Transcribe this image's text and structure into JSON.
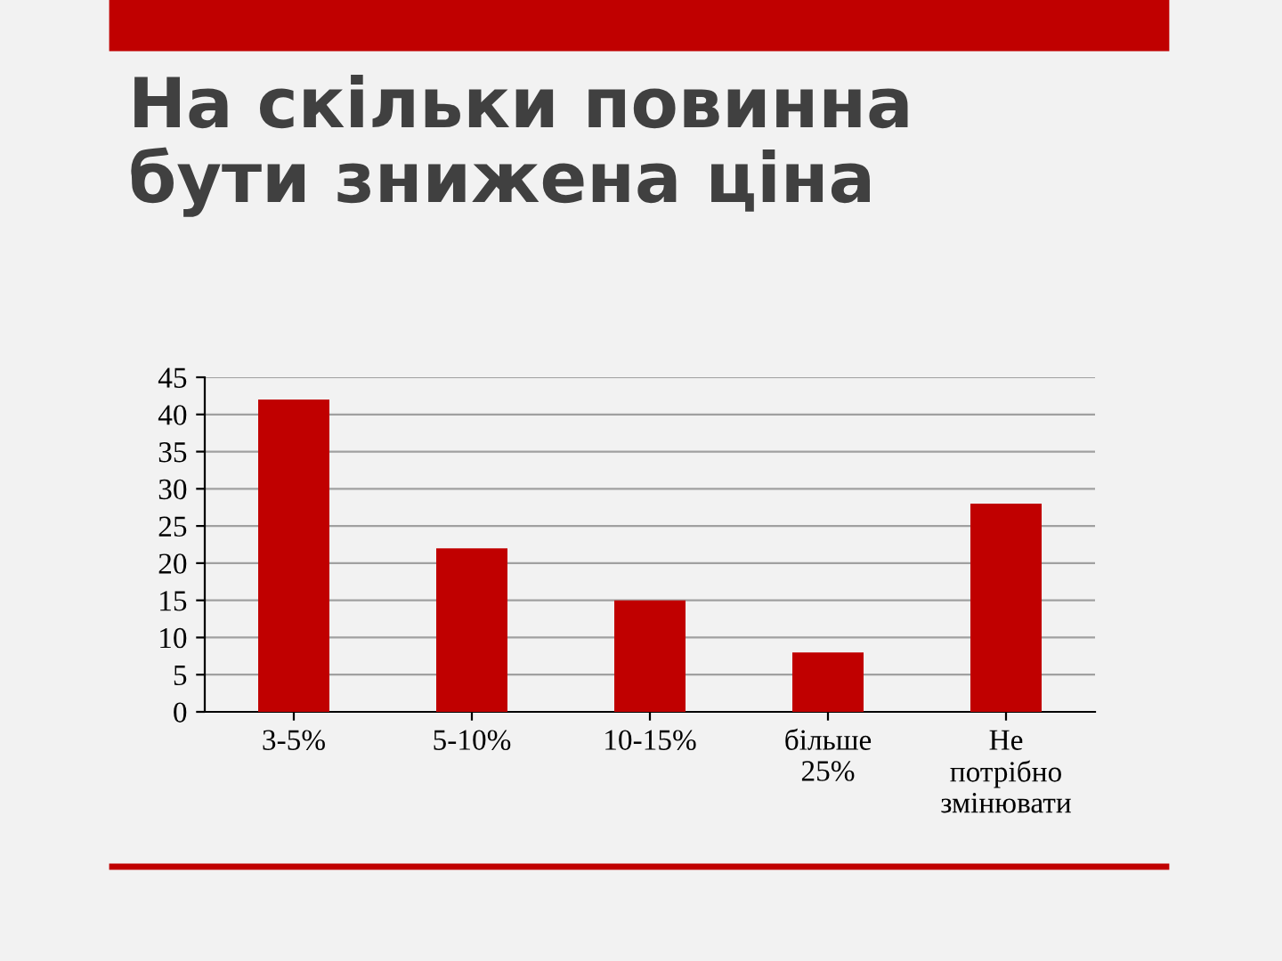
{
  "chart_data": {
    "type": "bar",
    "title": "На скільки повинна\nбути знижена ціна",
    "categories": [
      "3-5%",
      "5-10%",
      "10-15%",
      "більше\n25%",
      "Не\nпотрібно\nзмінювати"
    ],
    "values": [
      42,
      22,
      15,
      8,
      28
    ],
    "color": "#c00000",
    "ylim": [
      0,
      45
    ],
    "yticks": [
      0,
      5,
      10,
      15,
      20,
      25,
      30,
      35,
      40,
      45
    ],
    "grid": "y"
  }
}
